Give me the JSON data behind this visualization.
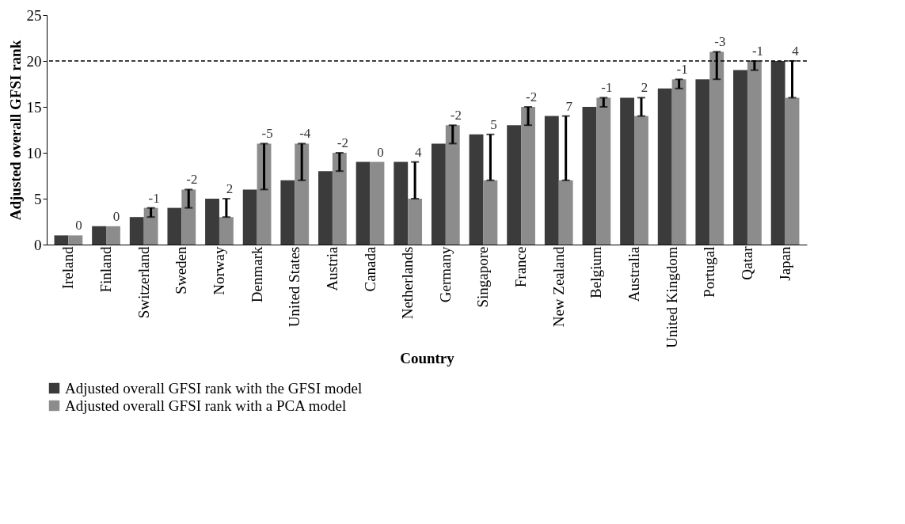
{
  "chart_data": {
    "type": "bar",
    "xlabel": "Country",
    "ylabel": "Adjusted overall GFSI rank",
    "categories": [
      "Ireland",
      "Finland",
      "Switzerland",
      "Sweden",
      "Norway",
      "Denmark",
      "United States",
      "Austria",
      "Canada",
      "Netherlands",
      "Germany",
      "Singapore",
      "France",
      "New Zealand",
      "Belgium",
      "Australia",
      "United Kingdom",
      "Portugal",
      "Qatar",
      "Japan"
    ],
    "series": [
      {
        "name": "Adjusted overall GFSI rank with the GFSI model",
        "color": "#3b3b3b",
        "values": [
          1,
          2,
          3,
          4,
          5,
          6,
          7,
          8,
          9,
          9,
          11,
          12,
          13,
          14,
          15,
          16,
          17,
          18,
          19,
          20
        ]
      },
      {
        "name": "Adjusted overall GFSI rank with a PCA model",
        "color": "#8c8c8c",
        "values": [
          1,
          2,
          4,
          6,
          3,
          11,
          11,
          10,
          9,
          5,
          13,
          7,
          15,
          7,
          16,
          14,
          18,
          21,
          20,
          16
        ],
        "errors": [
          null,
          null,
          [
            3,
            4
          ],
          [
            4,
            6
          ],
          [
            3,
            5
          ],
          [
            6,
            11
          ],
          [
            7,
            11
          ],
          [
            8,
            10
          ],
          null,
          [
            5,
            9
          ],
          [
            11,
            13
          ],
          [
            7,
            12
          ],
          [
            13,
            15
          ],
          [
            7,
            14
          ],
          [
            15,
            16
          ],
          [
            14,
            16
          ],
          [
            17,
            18
          ],
          [
            18,
            21
          ],
          [
            19,
            20
          ],
          [
            16,
            20
          ]
        ]
      }
    ],
    "annotations": [
      {
        "text": "0",
        "x": "Ireland",
        "y": 1
      },
      {
        "text": "0",
        "x": "Finland",
        "y": 2
      },
      {
        "text": "-1",
        "x": "Switzerland",
        "y": 4
      },
      {
        "text": "-2",
        "x": "Sweden",
        "y": 6
      },
      {
        "text": "2",
        "x": "Norway",
        "y": 5
      },
      {
        "text": "-5",
        "x": "Denmark",
        "y": 11
      },
      {
        "text": "-4",
        "x": "United States",
        "y": 11
      },
      {
        "text": "-2",
        "x": "Austria",
        "y": 10
      },
      {
        "text": "0",
        "x": "Canada",
        "y": 9
      },
      {
        "text": "4",
        "x": "Netherlands",
        "y": 9
      },
      {
        "text": "-2",
        "x": "Germany",
        "y": 13
      },
      {
        "text": "5",
        "x": "Singapore",
        "y": 12
      },
      {
        "text": "-2",
        "x": "France",
        "y": 15
      },
      {
        "text": "7",
        "x": "New Zealand",
        "y": 14
      },
      {
        "text": "-1",
        "x": "Belgium",
        "y": 16
      },
      {
        "text": "2",
        "x": "Australia",
        "y": 16
      },
      {
        "text": "-1",
        "x": "United Kingdom",
        "y": 18
      },
      {
        "text": "-3",
        "x": "Portugal",
        "y": 21
      },
      {
        "text": "-1",
        "x": "Qatar",
        "y": 20
      },
      {
        "text": "4",
        "x": "Japan",
        "y": 20
      }
    ],
    "ylim": [
      0,
      25
    ],
    "yticks": [
      0,
      5,
      10,
      15,
      20,
      25
    ],
    "grid": false,
    "legend": "bottom",
    "ref_lines": [
      {
        "axis": "y",
        "value": 20,
        "line_style": "dashed",
        "color": "#000000"
      }
    ]
  }
}
